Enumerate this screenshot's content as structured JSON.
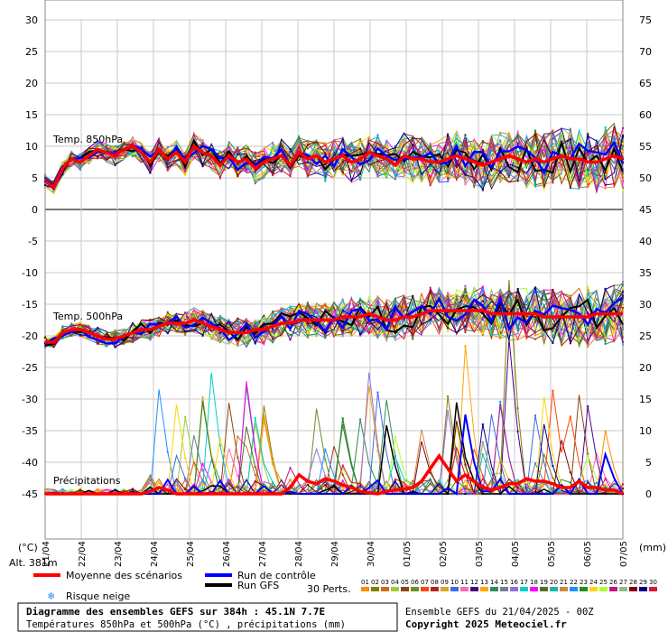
{
  "chart_data": {
    "type": "line",
    "left_axis": {
      "ylim": [
        -45,
        30
      ],
      "ticks": [
        "30",
        "25",
        "20",
        "15",
        "10",
        "5",
        "0",
        "-5",
        "-10",
        "-15",
        "-20",
        "-25",
        "-30",
        "-35",
        "-40",
        "-45"
      ],
      "unit": "(°C)"
    },
    "right_axis": {
      "ylim": [
        0,
        75
      ],
      "ticks": [
        "75",
        "70",
        "65",
        "60",
        "55",
        "50",
        "45",
        "40",
        "35",
        "30",
        "25",
        "20",
        "15",
        "10",
        "5",
        "0"
      ],
      "unit": "(mm)"
    },
    "x_dates": [
      "22/04",
      "23/04",
      "24/04",
      "25/04",
      "26/04",
      "27/04",
      "28/04",
      "29/04",
      "30/04",
      "01/05",
      "02/05",
      "03/05",
      "04/05",
      "05/05",
      "06/05",
      "07/05"
    ],
    "x_start_label": "21/04",
    "grid": true,
    "annotations": [
      "Temp. 850hPa",
      "Temp. 500hPa",
      "Précipitations"
    ],
    "mean_temp850": [
      4.5,
      3.5,
      6.5,
      8,
      7.5,
      8.5,
      9.5,
      9,
      8.5,
      9.5,
      10,
      9,
      7.5,
      9.5,
      8,
      9,
      7.5,
      10,
      9,
      8.5,
      7,
      8.5,
      7.5,
      8,
      6.5,
      7.5,
      8,
      8.5,
      7,
      9,
      8,
      8.5,
      7.5,
      8,
      8.5,
      7.5,
      8,
      9,
      8.5,
      8,
      7,
      8.5,
      8,
      8,
      7.5,
      7.5,
      8,
      8.5,
      8,
      7.5,
      7,
      7.5,
      8,
      8.5,
      8,
      7.5,
      8,
      7.5,
      8,
      8.5,
      8,
      8,
      7.5,
      7.5,
      8,
      8.5,
      8
    ],
    "mean_temp500": [
      -21,
      -21,
      -19.5,
      -19,
      -19,
      -19.5,
      -20,
      -20.5,
      -20.5,
      -20,
      -19.5,
      -19,
      -19,
      -18.5,
      -18,
      -18,
      -18,
      -17.5,
      -18,
      -18.5,
      -19,
      -19.5,
      -19.5,
      -19.5,
      -19,
      -19,
      -18.5,
      -18,
      -18,
      -17.5,
      -17.5,
      -17.5,
      -17.5,
      -17.5,
      -17,
      -17,
      -17,
      -16.5,
      -17,
      -17.5,
      -17.5,
      -17,
      -17,
      -16.5,
      -16,
      -16,
      -16,
      -16,
      -16,
      -16,
      -16,
      -16.5,
      -16.5,
      -16.5,
      -16.5,
      -16.5,
      -16.5,
      -17,
      -17,
      -17,
      -17,
      -17,
      -17,
      -16.5,
      -16.5,
      -16.5,
      -16.5
    ],
    "mean_precip_mm": [
      0,
      0,
      0,
      0,
      0,
      0,
      0,
      0,
      0,
      0,
      0,
      0,
      0.2,
      0.5,
      0.3,
      0,
      0,
      0,
      0,
      0,
      0,
      0,
      0,
      0,
      0,
      0,
      0,
      0,
      0.5,
      1.5,
      1,
      0.8,
      1.2,
      1,
      0.7,
      0.5,
      0.2,
      0.1,
      0,
      0.2,
      0.3,
      0.4,
      0.5,
      1,
      2,
      3,
      2,
      1,
      1.5,
      1,
      0.5,
      0.3,
      0.5,
      0.8,
      0.8,
      1.2,
      1,
      1,
      0.8,
      0.5,
      0.5,
      1,
      0.5,
      0.5,
      0.3,
      0.3,
      0
    ]
  },
  "legend": {
    "mean_label": "Moyenne des scénarios",
    "control_label": "Run de contrôle",
    "gfs_label": "Run GFS",
    "snow_label": "Risque neige",
    "perts_label": "30 Perts.",
    "perts": [
      "01",
      "02",
      "03",
      "04",
      "05",
      "06",
      "07",
      "08",
      "09",
      "10",
      "11",
      "12",
      "13",
      "14",
      "15",
      "16",
      "17",
      "18",
      "19",
      "20",
      "21",
      "22",
      "23",
      "24",
      "25",
      "26",
      "27",
      "28",
      "29",
      "30"
    ],
    "colors": {
      "mean": "#ff0000",
      "control": "#0000ff",
      "gfs": "#000000",
      "perts": [
        "#ff8c00",
        "#808000",
        "#d2691e",
        "#9acd32",
        "#8b4513",
        "#6b8e23",
        "#ff4500",
        "#b22222",
        "#daa520",
        "#4169e1",
        "#ff69b4",
        "#4b0082",
        "#ffa500",
        "#2e8b57",
        "#708090",
        "#9370db",
        "#00ced1",
        "#ff00ff",
        "#556b2f",
        "#20b2aa",
        "#cd853f",
        "#1e90ff",
        "#228b22",
        "#ffd700",
        "#adff2f",
        "#c71585",
        "#8fbc8f",
        "#800000",
        "#00008b",
        "#dc143c"
      ]
    }
  },
  "footer": {
    "alt": "Alt. 381m",
    "title": "Diagramme des ensembles GEFS sur 384h : 45.1N 7.7E",
    "subtitle": "Températures 850hPa et 500hPa (°C) , précipitations (mm)",
    "run": "Ensemble GEFS du 21/04/2025 - 00Z",
    "copyright": "Copyright 2025 Meteociel.fr"
  }
}
